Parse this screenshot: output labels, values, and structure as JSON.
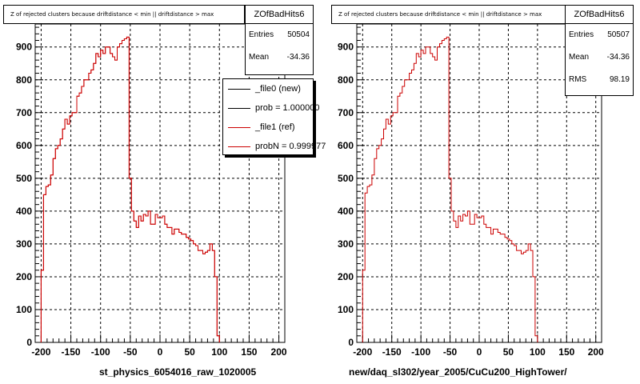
{
  "colors": {
    "new_line": "#000000",
    "ref_line": "#cc0000",
    "grid": "#000000",
    "axis": "#000000"
  },
  "panels": [
    {
      "title": "Z of rejected clusters because driftdistance < min || driftdistance > max",
      "stats": {
        "name": "ZOfBadHits6",
        "rows": [
          {
            "label": "Entries",
            "value": "50504"
          },
          {
            "label": "Mean",
            "value": "-34.36"
          }
        ]
      },
      "legend": [
        {
          "label": "_file0 (new)",
          "color": "#000000"
        },
        {
          "label": "prob = 1.000000",
          "color": "#000000"
        },
        {
          "label": "_file1 (ref)",
          "color": "#cc0000"
        },
        {
          "label": "probN = 0.999977",
          "color": "#cc0000"
        }
      ],
      "xtitle": "st_physics_6054016_raw_1020005"
    },
    {
      "title": "Z of rejected clusters because driftdistance < min || driftdistance > max",
      "stats": {
        "name": "ZOfBadHits6",
        "rows": [
          {
            "label": "Entries",
            "value": "50507"
          },
          {
            "label": "Mean",
            "value": "-34.36"
          },
          {
            "label": "RMS",
            "value": "98.19"
          }
        ]
      },
      "legend": [],
      "xtitle": "new/daq_sl302/year_2005/CuCu200_HighTower/"
    }
  ],
  "chart_data": [
    {
      "type": "histogram",
      "title": "Z of rejected clusters because driftdistance < min || driftdistance > max",
      "xlabel": "st_physics_6054016_raw_1020005",
      "ylabel": "",
      "xlim": [
        -210,
        210
      ],
      "ylim": [
        0,
        970
      ],
      "xticks": [
        -200,
        -150,
        -100,
        -50,
        0,
        50,
        100,
        150,
        200
      ],
      "yticks": [
        0,
        100,
        200,
        300,
        400,
        500,
        600,
        700,
        800,
        900
      ],
      "grid": true,
      "bin_edges_start": -200,
      "bin_width": 4,
      "series": [
        {
          "name": "_file1 (ref)",
          "values": [
            220,
            450,
            475,
            480,
            510,
            560,
            590,
            600,
            620,
            650,
            680,
            665,
            690,
            700,
            700,
            750,
            760,
            780,
            800,
            800,
            820,
            830,
            850,
            880,
            870,
            890,
            880,
            900,
            900,
            880,
            870,
            860,
            900,
            910,
            920,
            925,
            930,
            500,
            400,
            370,
            350,
            385,
            370,
            390,
            385,
            400,
            360,
            360,
            390,
            380,
            380,
            385,
            360,
            350,
            350,
            330,
            345,
            345,
            335,
            330,
            330,
            320,
            315,
            310,
            300,
            295,
            280,
            280,
            270,
            275,
            280,
            300,
            280,
            200,
            20
          ]
        },
        {
          "name": "_file0 (new)",
          "values": [
            220,
            450,
            475,
            480,
            510,
            560,
            590,
            600,
            620,
            650,
            680,
            665,
            690,
            700,
            700,
            750,
            760,
            780,
            800,
            800,
            820,
            830,
            850,
            880,
            870,
            890,
            880,
            900,
            900,
            880,
            870,
            860,
            900,
            910,
            920,
            925,
            930,
            500,
            400,
            370,
            350,
            385,
            370,
            390,
            385,
            400,
            360,
            360,
            390,
            380,
            380,
            385,
            360,
            350,
            350,
            330,
            345,
            345,
            335,
            330,
            330,
            320,
            315,
            310,
            300,
            295,
            280,
            280,
            270,
            275,
            280,
            300,
            280,
            200,
            20
          ]
        }
      ]
    },
    {
      "type": "histogram",
      "title": "Z of rejected clusters because driftdistance < min || driftdistance > max",
      "xlabel": "new/daq_sl302/year_2005/CuCu200_HighTower/",
      "ylabel": "",
      "xlim": [
        -210,
        210
      ],
      "ylim": [
        0,
        970
      ],
      "xticks": [
        -200,
        -150,
        -100,
        -50,
        0,
        50,
        100,
        150,
        200
      ],
      "yticks": [
        0,
        100,
        200,
        300,
        400,
        500,
        600,
        700,
        800,
        900
      ],
      "grid": true,
      "bin_edges_start": -200,
      "bin_width": 4,
      "series": [
        {
          "name": "_file0 (new)",
          "values": [
            220,
            455,
            475,
            480,
            510,
            560,
            590,
            600,
            620,
            650,
            680,
            665,
            690,
            700,
            700,
            750,
            760,
            780,
            800,
            800,
            820,
            830,
            850,
            880,
            870,
            890,
            880,
            900,
            900,
            880,
            870,
            860,
            900,
            910,
            920,
            925,
            930,
            500,
            400,
            370,
            350,
            385,
            370,
            390,
            385,
            400,
            360,
            360,
            390,
            380,
            380,
            385,
            360,
            350,
            350,
            330,
            345,
            345,
            335,
            330,
            330,
            320,
            315,
            310,
            300,
            295,
            280,
            280,
            270,
            275,
            280,
            300,
            280,
            200,
            20
          ]
        }
      ]
    }
  ]
}
